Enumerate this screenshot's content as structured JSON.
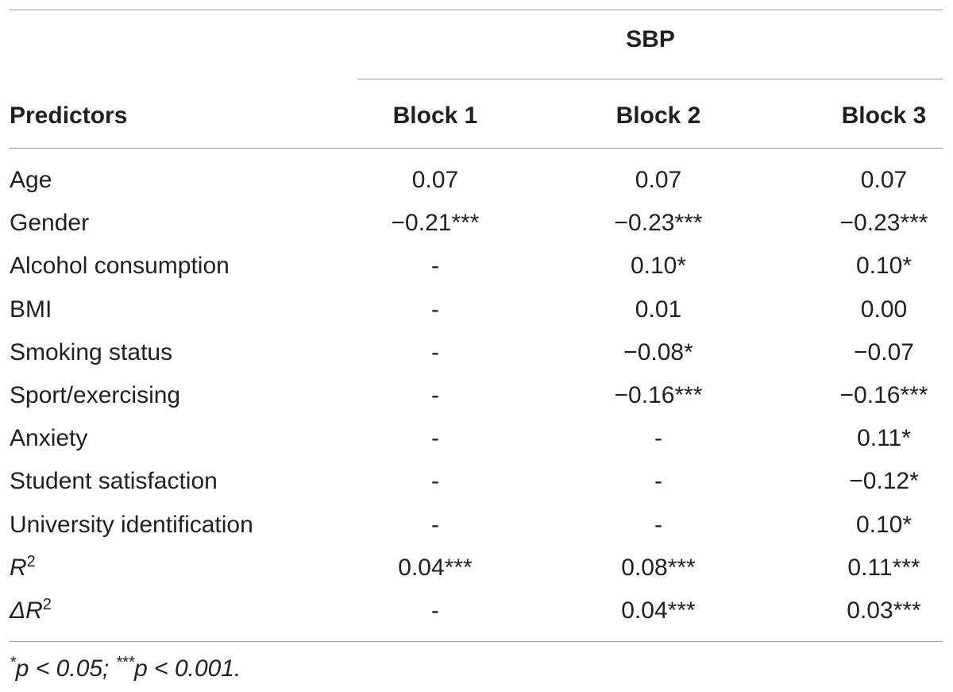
{
  "table": {
    "group_header": "SBP",
    "columns": [
      "Predictors",
      "Block 1",
      "Block 2",
      "Block 3"
    ],
    "rows": [
      {
        "label": "Age",
        "b1": "0.07",
        "b2": "0.07",
        "b3": "0.07"
      },
      {
        "label": "Gender",
        "b1": "−0.21***",
        "b2": "−0.23***",
        "b3": "−0.23***"
      },
      {
        "label": "Alcohol consumption",
        "b1": "-",
        "b2": "0.10*",
        "b3": "0.10*"
      },
      {
        "label": "BMI",
        "b1": "-",
        "b2": "0.01",
        "b3": "0.00"
      },
      {
        "label": "Smoking status",
        "b1": "-",
        "b2": "−0.08*",
        "b3": "−0.07"
      },
      {
        "label": "Sport/exercising",
        "b1": "-",
        "b2": "−0.16***",
        "b3": "−0.16***"
      },
      {
        "label": "Anxiety",
        "b1": "-",
        "b2": "-",
        "b3": "0.11*"
      },
      {
        "label": "Student satisfaction",
        "b1": "-",
        "b2": "-",
        "b3": "−0.12*"
      },
      {
        "label": "University identification",
        "b1": "-",
        "b2": "-",
        "b3": "0.10*"
      },
      {
        "label": "R",
        "label_sup": "2",
        "b1": "0.04***",
        "b2": "0.08***",
        "b3": "0.11***"
      },
      {
        "label": "ΔR",
        "label_sup": "2",
        "b1": "-",
        "b2": "0.04***",
        "b3": "0.03***"
      }
    ],
    "footnote": {
      "part1_sup": "*",
      "part1": "p < 0.05; ",
      "part2_sup": "***",
      "part2": "p < 0.001."
    }
  }
}
